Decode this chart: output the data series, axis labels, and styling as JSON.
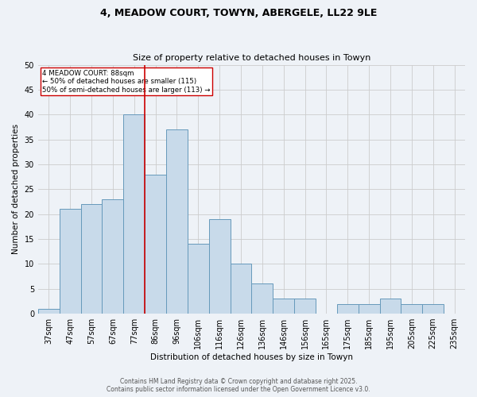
{
  "title_line1": "4, MEADOW COURT, TOWYN, ABERGELE, LL22 9LE",
  "title_line2": "Size of property relative to detached houses in Towyn",
  "xlabel": "Distribution of detached houses by size in Towyn",
  "ylabel": "Number of detached properties",
  "categories": [
    "37sqm",
    "47sqm",
    "57sqm",
    "67sqm",
    "77sqm",
    "86sqm",
    "96sqm",
    "106sqm",
    "116sqm",
    "126sqm",
    "136sqm",
    "146sqm",
    "156sqm",
    "165sqm",
    "175sqm",
    "185sqm",
    "195sqm",
    "205sqm",
    "225sqm",
    "235sqm"
  ],
  "values": [
    1,
    21,
    22,
    23,
    40,
    28,
    37,
    14,
    19,
    10,
    6,
    3,
    3,
    0,
    2,
    2,
    3,
    2,
    2,
    0
  ],
  "bar_color": "#c8daea",
  "bar_edge_color": "#6699bb",
  "highlight_line_color": "#cc0000",
  "annotation_text": "4 MEADOW COURT: 88sqm\n← 50% of detached houses are smaller (115)\n50% of semi-detached houses are larger (113) →",
  "annotation_box_color": "#ffffff",
  "annotation_border_color": "#cc0000",
  "ylim": [
    0,
    50
  ],
  "yticks": [
    0,
    5,
    10,
    15,
    20,
    25,
    30,
    35,
    40,
    45,
    50
  ],
  "grid_color": "#cccccc",
  "bg_color": "#eef2f7",
  "footer_line1": "Contains HM Land Registry data © Crown copyright and database right 2025.",
  "footer_line2": "Contains public sector information licensed under the Open Government Licence v3.0.",
  "font_family": "DejaVu Sans",
  "title_fontsize": 9,
  "subtitle_fontsize": 8,
  "axis_label_fontsize": 7.5,
  "tick_fontsize": 7,
  "footer_fontsize": 5.5,
  "annotation_fontsize": 6.2,
  "red_line_bar_index": 5
}
